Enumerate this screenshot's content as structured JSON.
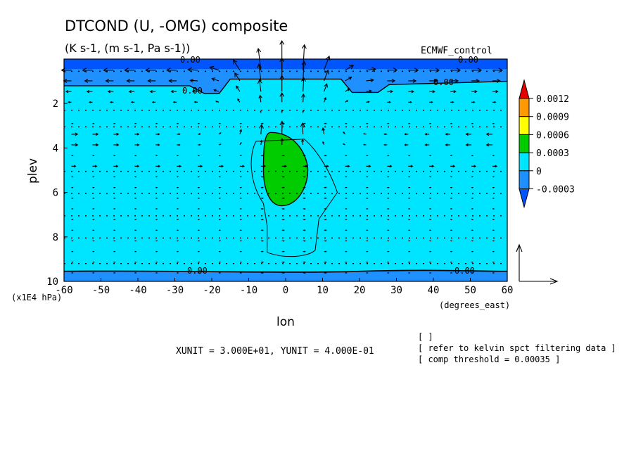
{
  "chart_data": {
    "type": "heatmap",
    "title": "DTCOND (U, -OMG) composite",
    "subtitle": "(K s-1, (m s-1, Pa s-1))",
    "dataset_label": "ECMWF_control",
    "xlabel": "lon",
    "x_units": "(degrees_east)",
    "ylabel": "plev",
    "y_units": "(x1E4 hPa)",
    "xlim": [
      -60,
      60
    ],
    "ylim": [
      10,
      0
    ],
    "xticks": [
      -60,
      -50,
      -40,
      -30,
      -20,
      -10,
      0,
      10,
      20,
      30,
      40,
      50,
      60
    ],
    "yticks": [
      2,
      4,
      6,
      8,
      10
    ],
    "colorbar": {
      "levels": [
        "0.0012",
        "0.0009",
        "0.0006",
        "0.0003",
        "0",
        "-0.0003"
      ],
      "colors": [
        "#e60000",
        "#ff9900",
        "#ffff00",
        "#00cc00",
        "#00e5ff",
        "#1e90ff",
        "#0055ff"
      ]
    },
    "contour_labels": [
      "0.00",
      "0.00",
      "0.00",
      "0.00",
      "0.00",
      "0.00"
    ],
    "fields": {
      "background_band": "0 to 0.0003",
      "upper_band": "-0.0003 to 0",
      "heating_max_center": {
        "lon": -1,
        "plev": 5
      },
      "heating_max_range": "0.0003 to 0.0006"
    },
    "vector_units": {
      "xunit": "3.000E+01",
      "yunit": "4.000E-01"
    },
    "footer_text": "XUNIT = 3.000E+01, YUNIT = 4.000E-01",
    "notes": [
      "[  ]",
      "[ refer to kelvin spct filtering data ]",
      "[ comp threshold = 0.00035 ]"
    ]
  }
}
